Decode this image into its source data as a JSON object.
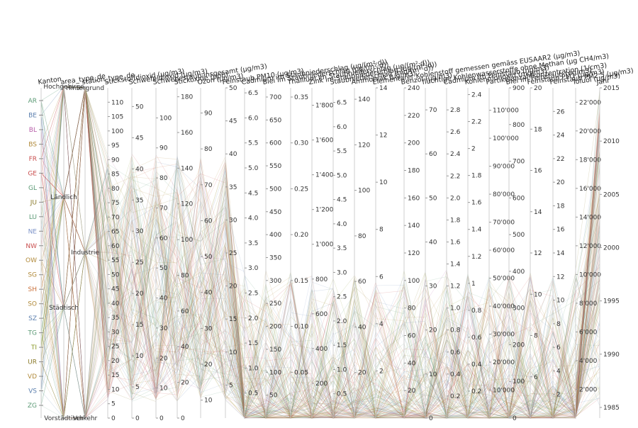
{
  "chart_data": {
    "type": "parallel-coordinates",
    "dimensions": [
      {
        "name": "Kanton",
        "kind": "categorical",
        "categories": [
          "AR",
          "BE",
          "BL",
          "BS",
          "FR",
          "GE",
          "GL",
          "JU",
          "LU",
          "NE",
          "NW",
          "OW",
          "SG",
          "SH",
          "SO",
          "SZ",
          "TG",
          "TI",
          "UR",
          "VD",
          "VS",
          "ZG"
        ],
        "category_colors": [
          "#5b9a75",
          "#5b7fae",
          "#b75ea9",
          "#b18a3a",
          "#c94f4f",
          "#c94f4f",
          "#5b9a75",
          "#8a7a2a",
          "#5b9a75",
          "#7b92c8",
          "#c94f4f",
          "#b18a3a",
          "#b18a3a",
          "#c9703a",
          "#b18a3a",
          "#5b7fae",
          "#5b9a75",
          "#8a9a2a",
          "#8a7a2a",
          "#b18a3a",
          "#5b7fae",
          "#5b9a75"
        ]
      },
      {
        "name": "area_type_de",
        "kind": "categorical",
        "categories": [
          "Hochgebirge",
          "Ländlich",
          "Städtisch",
          "Vorstädtisch"
        ]
      },
      {
        "name": "station_type_de",
        "kind": "categorical",
        "categories": [
          "Hintergrund",
          "Industrie",
          "Verkehr"
        ]
      },
      {
        "name": "Stickstoffdioxid (µg/m3)",
        "kind": "numeric",
        "range": [
          0,
          115
        ],
        "ticks": [
          "0",
          "5",
          "10",
          "15",
          "20",
          "25",
          "30",
          "35",
          "40",
          "45",
          "50",
          "55",
          "60",
          "65",
          "70",
          "75",
          "80",
          "85",
          "90",
          "95",
          "100",
          "105",
          "110"
        ]
      },
      {
        "name": "Schwefeldioxid (µg/m3)",
        "kind": "numeric",
        "range": [
          0,
          53
        ],
        "ticks": [
          "0",
          "5",
          "10",
          "15",
          "20",
          "25",
          "30",
          "35",
          "40",
          "45",
          "50"
        ]
      },
      {
        "name": "Schwebestaub insgesamt (µg/m3)",
        "kind": "numeric",
        "range": [
          0,
          110
        ],
        "ticks": [
          "0",
          "10",
          "20",
          "30",
          "40",
          "50",
          "60",
          "70",
          "80",
          "90",
          "100"
        ]
      },
      {
        "name": "Stickoxide (ppb)",
        "kind": "numeric",
        "range": [
          0,
          185
        ],
        "ticks": [
          "0",
          "20",
          "40",
          "60",
          "80",
          "100",
          "120",
          "140",
          "160",
          "180"
        ]
      },
      {
        "name": "Ozon (µg/m3)",
        "kind": "numeric",
        "range": [
          5,
          97
        ],
        "ticks": [
          "10",
          "20",
          "30",
          "40",
          "50",
          "60",
          "70",
          "80",
          "90"
        ]
      },
      {
        "name": "Feinstaub PM10 (µg/m3)",
        "kind": "numeric",
        "range": [
          0,
          50
        ],
        "ticks": [
          "5",
          "10",
          "15",
          "20",
          "25",
          "30",
          "35",
          "40",
          "45",
          "50"
        ]
      },
      {
        "name": "Cadmium im Staubniederschlag (µg/(m²·d))",
        "kind": "numeric",
        "range": [
          0,
          6.6
        ],
        "ticks": [
          "0.5",
          "1.0",
          "1.5",
          "2.0",
          "2.5",
          "3.0",
          "3.5",
          "4.0",
          "4.5",
          "5.0",
          "5.5",
          "6.0",
          "6.5"
        ]
      },
      {
        "name": "Blei im Staubniederschlag (µg/(m²·d))",
        "kind": "numeric",
        "range": [
          0,
          720
        ],
        "ticks": [
          "50",
          "100",
          "150",
          "200",
          "250",
          "300",
          "350",
          "400",
          "450",
          "500",
          "550",
          "600",
          "650",
          "700"
        ]
      },
      {
        "name": "Thallium im Staubniederschlag (µg/(m²·d))",
        "kind": "numeric",
        "range": [
          0,
          0.36
        ],
        "ticks": [
          "0.05",
          "0.10",
          "0.15",
          "0.20",
          "0.25",
          "0.30",
          "0.35"
        ]
      },
      {
        "name": "Zink im Staubniederschlag (µg/(m²·d))",
        "kind": "numeric",
        "range": [
          0,
          1900
        ],
        "ticks": [
          "200",
          "400",
          "600",
          "800",
          "1'000",
          "1'200",
          "1'400",
          "1'600",
          "1'800"
        ]
      },
      {
        "name": "Staubniederschlag (mg/(m²·d))",
        "kind": "numeric",
        "range": [
          0,
          6.8
        ],
        "ticks": [
          "0.5",
          "1.0",
          "1.5",
          "2.0",
          "2.5",
          "3.0",
          "3.5",
          "4.0",
          "4.5",
          "5.0",
          "5.5",
          "6.0",
          "6.5"
        ]
      },
      {
        "name": "Ammoniak (µg/m3)",
        "kind": "numeric",
        "range": [
          0,
          145
        ],
        "ticks": [
          "20",
          "40",
          "60",
          "80",
          "100",
          "120",
          "140"
        ]
      },
      {
        "name": "Elementarer Kohlenstoff gemessen gemäss EUSAAR2 (µg/m3)",
        "kind": "numeric",
        "range": [
          0,
          14
        ],
        "ticks": [
          "2",
          "4",
          "6",
          "8",
          "10",
          "12",
          "14"
        ]
      },
      {
        "name": "Benzol (µg/m3)",
        "kind": "numeric",
        "range": [
          0,
          240
        ],
        "ticks": [
          "20",
          "40",
          "60",
          "80",
          "100",
          "120",
          "140",
          "160",
          "180",
          "200",
          "220",
          "240"
        ]
      },
      {
        "name": "flüchtige Kohlenwasserstoffe ohne Methan (µg CH4/m3)",
        "kind": "numeric",
        "range": [
          0,
          75
        ],
        "ticks": [
          "0",
          "10",
          "20",
          "30",
          "40",
          "50",
          "60",
          "70"
        ]
      },
      {
        "name": "Cadmium im Feinstaub (ng/m3)",
        "kind": "numeric",
        "range": [
          0,
          3.0
        ],
        "ticks": [
          "0.2",
          "0.4",
          "0.6",
          "0.8",
          "1.0",
          "1.2",
          "1.4",
          "1.6",
          "1.8",
          "2.0",
          "2.2",
          "2.4",
          "2.6",
          "2.8"
        ]
      },
      {
        "name": "Kohlenmonoxid (mg/m3)",
        "kind": "numeric",
        "range": [
          0,
          2.45
        ],
        "ticks": [
          "0.2",
          "0.4",
          "0.6",
          "0.8",
          "1",
          "1.2",
          "1.4",
          "1.6",
          "1.8",
          "2",
          "2.2",
          "2.4"
        ]
      },
      {
        "name": "Partikelanzahlkonzentration (1/cm3)",
        "kind": "numeric",
        "range": [
          0,
          118000
        ],
        "ticks": [
          "10'000",
          "20'000",
          "30'000",
          "40'000",
          "50'000",
          "60'000",
          "70'000",
          "80'000",
          "90'000",
          "100'000",
          "110'000"
        ]
      },
      {
        "name": "Blei im Feinstaub (ng/m3)",
        "kind": "numeric",
        "range": [
          0,
          900
        ],
        "ticks": [
          "0",
          "100",
          "200",
          "300",
          "400",
          "500",
          "600",
          "700",
          "800",
          "900"
        ]
      },
      {
        "name": "Feinstaub PM1 (µg/m3)",
        "kind": "numeric",
        "range": [
          4,
          20
        ],
        "ticks": [
          "6",
          "8",
          "10",
          "12",
          "14",
          "16",
          "18",
          "20"
        ]
      },
      {
        "name": "Feinstaub PM2.5 (µg/m3)",
        "kind": "numeric",
        "range": [
          0,
          28
        ],
        "ticks": [
          "2",
          "4",
          "6",
          "8",
          "10",
          "12",
          "14",
          "16",
          "18",
          "20",
          "22",
          "24",
          "26"
        ]
      },
      {
        "name": "Toluol (µg/m3)",
        "kind": "numeric",
        "range": [
          0,
          23000
        ],
        "ticks": [
          "2'000",
          "4'000",
          "6'000",
          "8'000",
          "10'000",
          "12'000",
          "14'000",
          "16'000",
          "18'000",
          "20'000",
          "22'000"
        ]
      },
      {
        "name": "Jahr",
        "kind": "numeric",
        "range": [
          1984,
          2015
        ],
        "ticks": [
          "1985",
          "1990",
          "1995",
          "2000",
          "2005",
          "2010",
          "2015"
        ]
      }
    ]
  }
}
